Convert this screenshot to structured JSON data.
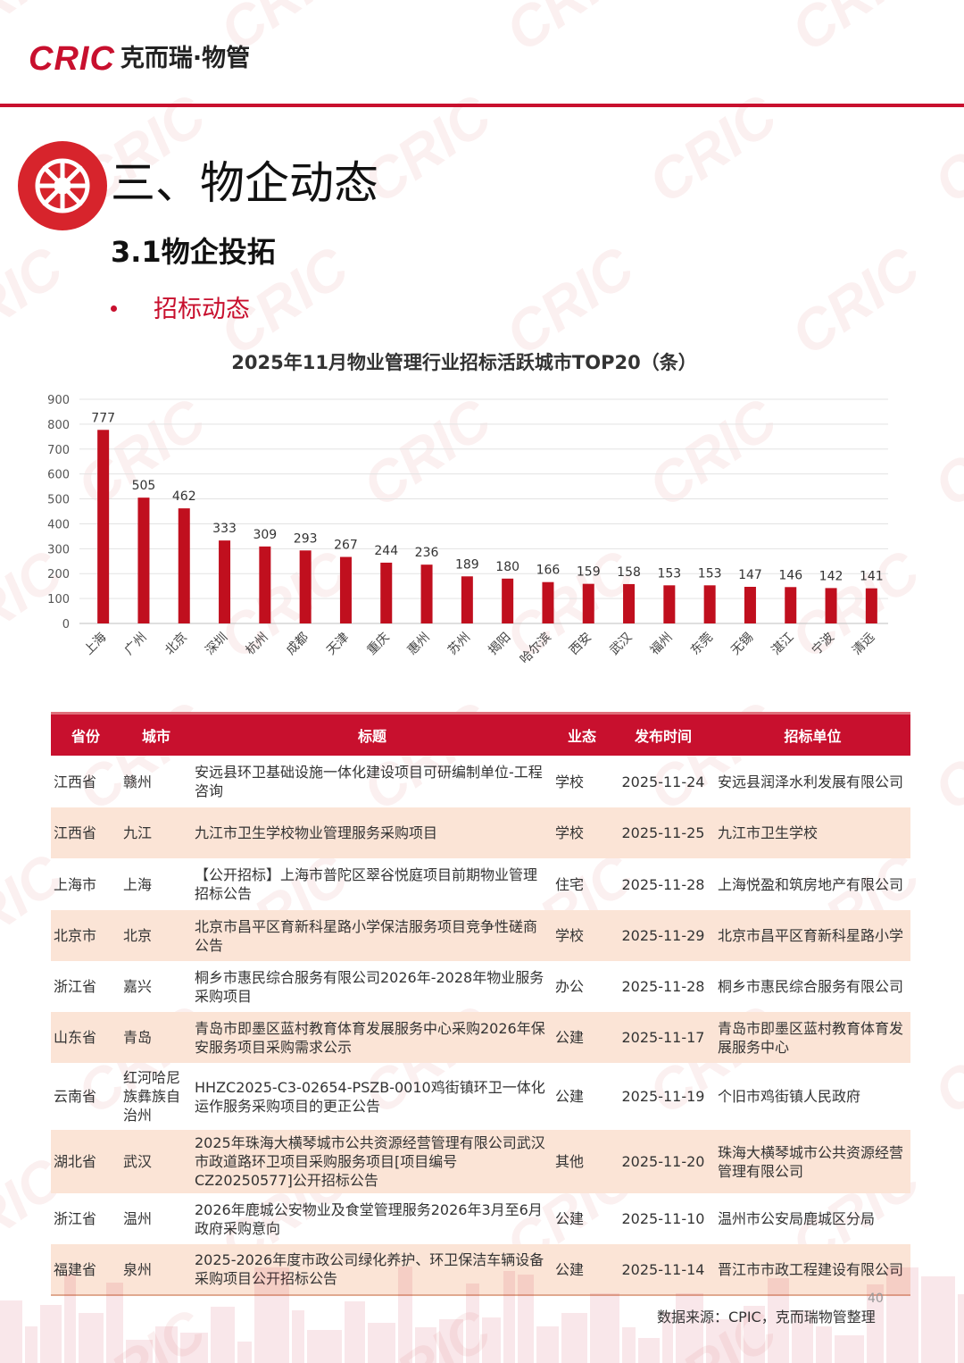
{
  "header": {
    "logo_latin": "CRIC",
    "logo_chinese": "克而瑞·物管"
  },
  "section": {
    "title": "三、物企动态",
    "subsection": "3.1物企投拓",
    "bullet": "招标动态"
  },
  "chart_data": {
    "type": "bar",
    "title": "2025年11月物业管理行业招标活跃城市TOP20（条）",
    "categories": [
      "上海",
      "广州",
      "北京",
      "深圳",
      "杭州",
      "成都",
      "天津",
      "重庆",
      "惠州",
      "苏州",
      "揭阳",
      "哈尔滨",
      "西安",
      "武汉",
      "福州",
      "东莞",
      "无锡",
      "湛江",
      "宁波",
      "清远"
    ],
    "values": [
      777,
      505,
      462,
      333,
      309,
      293,
      267,
      244,
      236,
      189,
      180,
      166,
      159,
      158,
      153,
      153,
      147,
      146,
      142,
      141
    ],
    "ylim": [
      0,
      900
    ],
    "yticks": [
      0,
      100,
      200,
      300,
      400,
      500,
      600,
      700,
      800,
      900
    ],
    "grid": true,
    "bar_color": "#c00f1e",
    "data_labels": true,
    "xlabel": "",
    "ylabel": ""
  },
  "table": {
    "headers": [
      "省份",
      "城市",
      "标题",
      "业态",
      "发布时间",
      "招标单位"
    ],
    "rows": [
      [
        "江西省",
        "赣州",
        "安远县环卫基础设施一体化建设项目可研编制单位-工程咨询",
        "学校",
        "2025-11-24",
        "安远县润泽水利发展有限公司"
      ],
      [
        "江西省",
        "九江",
        "九江市卫生学校物业管理服务采购项目",
        "学校",
        "2025-11-25",
        "九江市卫生学校"
      ],
      [
        "上海市",
        "上海",
        "【公开招标】上海市普陀区翠谷悦庭项目前期物业管理招标公告",
        "住宅",
        "2025-11-28",
        "上海悦盈和筑房地产有限公司"
      ],
      [
        "北京市",
        "北京",
        "北京市昌平区育新科星路小学保洁服务项目竞争性磋商公告",
        "学校",
        "2025-11-29",
        "北京市昌平区育新科星路小学"
      ],
      [
        "浙江省",
        "嘉兴",
        "桐乡市惠民综合服务有限公司2026年-2028年物业服务采购项目",
        "办公",
        "2025-11-28",
        "桐乡市惠民综合服务有限公司"
      ],
      [
        "山东省",
        "青岛",
        "青岛市即墨区蓝村教育体育发展服务中心采购2026年保安服务项目采购需求公示",
        "公建",
        "2025-11-17",
        "青岛市即墨区蓝村教育体育发展服务中心"
      ],
      [
        "云南省",
        "红河哈尼族彝族自治州",
        "HHZC2025-C3-02654-PSZB-0010鸡街镇环卫一体化运作服务采购项目的更正公告",
        "公建",
        "2025-11-19",
        "个旧市鸡街镇人民政府"
      ],
      [
        "湖北省",
        "武汉",
        "2025年珠海大横琴城市公共资源经营管理有限公司武汉市政道路环卫项目采购服务项目[项目编号CZ20250577]公开招标公告",
        "其他",
        "2025-11-20",
        "珠海大横琴城市公共资源经营管理有限公司"
      ],
      [
        "浙江省",
        "温州",
        "2026年鹿城公安物业及食堂管理服务2026年3月至6月政府采购意向",
        "公建",
        "2025-11-10",
        "温州市公安局鹿城区分局"
      ],
      [
        "福建省",
        "泉州",
        "2025-2026年度市政公司绿化养护、环卫保洁车辆设备采购项目公开招标公告",
        "公建",
        "2025-11-14",
        "晋江市市政工程建设有限公司"
      ]
    ]
  },
  "footer": {
    "page_number": "40",
    "source": "数据来源：CPIC，克而瑞物管整理"
  },
  "colors": {
    "brand_red": "#c8102e",
    "row_stripe": "#fbe4d6"
  }
}
